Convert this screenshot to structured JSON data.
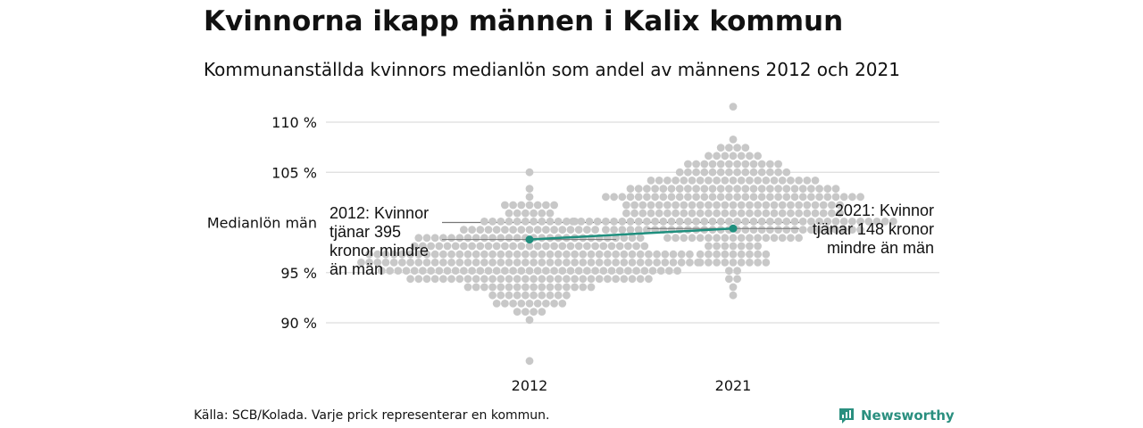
{
  "header": {
    "title": "Kvinnorna ikapp männen i Kalix kommun",
    "subtitle": "Kommunanställda kvinnors medianlön som andel av männens 2012 och 2021"
  },
  "footer": {
    "source": "Källa: SCB/Kolada. Varje prick representerar en kommun.",
    "brand": "Newsworthy"
  },
  "colors": {
    "dots": "#c8c8c8",
    "highlight": "#1f8f7e",
    "grid": "#dddddd",
    "reference": "#777777",
    "brand": "#2a8f7f"
  },
  "icons": {
    "brand": "newsworthy-logo-icon"
  },
  "chart_data": {
    "type": "scatter",
    "subtype": "beeswarm",
    "title": "Kvinnorna ikapp männen i Kalix kommun",
    "subtitle": "Kommunanställda kvinnors medianlön som andel av männens 2012 och 2021",
    "categories": [
      "2012",
      "2021"
    ],
    "y_ticks": [
      90,
      95,
      105,
      110
    ],
    "y_tick_labels": [
      "90 %",
      "95 %",
      "105 %",
      "110 %"
    ],
    "ylim": [
      86,
      111.5
    ],
    "grid": true,
    "reference_line": {
      "value": 100,
      "label": "Medianlön män"
    },
    "distribution": [
      {
        "category": "2012",
        "count": 290,
        "mean": 96.2,
        "sd": 2.6,
        "min": 86.5,
        "max": 105.2
      },
      {
        "category": "2021",
        "count": 290,
        "mean": 101.3,
        "sd": 2.9,
        "min": 92.8,
        "max": 111.3
      }
    ],
    "highlight": {
      "name": "Kalix",
      "points": [
        {
          "x": "2012",
          "y": 98.3
        },
        {
          "x": "2021",
          "y": 99.4
        }
      ]
    },
    "annotations": [
      {
        "x": "2012",
        "text": "2012: Kvinnor tjänar 395 kronor mindre än män",
        "lines": [
          "2012: Kvinnor",
          "tjänar 395",
          "kronor mindre",
          "än män"
        ]
      },
      {
        "x": "2021",
        "text": "2021: Kvinnor tjänar 148 kronor mindre än män",
        "lines": [
          "2021: Kvinnor",
          "tjänar 148 kronor",
          "mindre än män"
        ]
      }
    ]
  }
}
